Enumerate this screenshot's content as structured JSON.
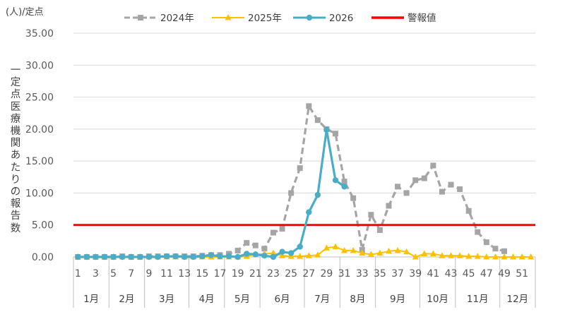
{
  "chart_data": {
    "type": "line",
    "unit_label": "(人)/定点",
    "ylabel": "一定点医療機関あたりの報告数",
    "ylim": [
      0,
      35
    ],
    "y_ticks": [
      "0.00",
      "5.00",
      "10.00",
      "15.00",
      "20.00",
      "25.00",
      "30.00",
      "35.00"
    ],
    "x_tick_labels": [
      "1",
      "3",
      "5",
      "7",
      "9",
      "11",
      "13",
      "15",
      "17",
      "19",
      "21",
      "23",
      "25",
      "27",
      "29",
      "31",
      "33",
      "35",
      "37",
      "39",
      "41",
      "43",
      "45",
      "47",
      "49",
      "51"
    ],
    "months": [
      "1月",
      "2月",
      "3月",
      "4月",
      "5月",
      "6月",
      "7月",
      "8月",
      "9月",
      "10月",
      "11月",
      "12月"
    ],
    "month_bounds": [
      1,
      5,
      9,
      14,
      18,
      22,
      27,
      31,
      35,
      40,
      44,
      49,
      53
    ],
    "legend_position": "top",
    "grid": true,
    "series": [
      {
        "name": "2024年",
        "color": "#A5A5A5",
        "style": "dashed",
        "marker": "square",
        "x": [
          1,
          2,
          3,
          4,
          5,
          6,
          7,
          8,
          9,
          10,
          11,
          12,
          13,
          14,
          15,
          16,
          17,
          18,
          19,
          20,
          21,
          22,
          23,
          24,
          25,
          26,
          27,
          28,
          29,
          30,
          31,
          32,
          33,
          34,
          35,
          36,
          37,
          38,
          39,
          40,
          41,
          42,
          43,
          44,
          45,
          46,
          47,
          48,
          49
        ],
        "values": [
          0.0,
          0.0,
          0.0,
          0.0,
          0.0,
          0.1,
          0.0,
          0.0,
          0.1,
          0.1,
          0.1,
          0.1,
          0.1,
          0.1,
          0.2,
          0.3,
          0.3,
          0.5,
          1.0,
          2.2,
          1.8,
          1.3,
          3.8,
          4.4,
          10.0,
          13.9,
          23.6,
          21.4,
          20.0,
          19.3,
          11.8,
          9.2,
          1.1,
          6.6,
          4.2,
          8.0,
          11.0,
          10.0,
          12.0,
          12.3,
          14.3,
          10.2,
          11.3,
          10.6,
          7.2,
          3.9,
          2.3,
          1.3,
          0.9
        ]
      },
      {
        "name": "2025年",
        "color": "#FFC000",
        "style": "solid",
        "marker": "triangle",
        "x": [
          1,
          2,
          3,
          4,
          5,
          6,
          7,
          8,
          9,
          10,
          11,
          12,
          13,
          14,
          15,
          16,
          17,
          18,
          19,
          20,
          21,
          22,
          23,
          24,
          25,
          26,
          27,
          28,
          29,
          30,
          31,
          32,
          33,
          34,
          35,
          36,
          37,
          38,
          39,
          40,
          41,
          42,
          43,
          44,
          45,
          46,
          47,
          48,
          49,
          50,
          51,
          52
        ],
        "values": [
          0.0,
          0.0,
          0.0,
          0.0,
          0.0,
          0.0,
          0.0,
          0.0,
          0.0,
          0.0,
          0.0,
          0.0,
          0.0,
          0.0,
          0.0,
          0.0,
          0.0,
          0.0,
          0.0,
          0.1,
          0.4,
          0.5,
          0.6,
          0.2,
          0.1,
          0.1,
          0.2,
          0.3,
          1.4,
          1.6,
          1.0,
          1.0,
          0.6,
          0.4,
          0.6,
          0.9,
          1.0,
          0.8,
          0.0,
          0.5,
          0.5,
          0.2,
          0.2,
          0.2,
          0.1,
          0.1,
          0.0,
          0.0,
          0.0,
          0.0,
          0.0,
          0.0
        ]
      },
      {
        "name": "2026",
        "color": "#4BACC6",
        "style": "solid",
        "marker": "circle",
        "x": [
          1,
          2,
          3,
          4,
          5,
          6,
          7,
          8,
          9,
          10,
          11,
          12,
          13,
          14,
          15,
          16,
          17,
          18,
          19,
          20,
          21,
          22,
          23,
          24,
          25,
          26,
          27,
          28,
          29,
          30,
          31
        ],
        "values": [
          0.0,
          0.0,
          0.0,
          0.0,
          0.0,
          0.0,
          0.0,
          0.0,
          0.0,
          0.0,
          0.1,
          0.1,
          0.0,
          0.0,
          0.1,
          0.3,
          0.1,
          0.1,
          0.0,
          0.5,
          0.4,
          0.2,
          0.0,
          0.8,
          0.6,
          1.6,
          7.0,
          9.7,
          19.9,
          12.0,
          11.0
        ]
      },
      {
        "name": "警報値",
        "color": "#FF0000",
        "style": "solid",
        "marker": "none",
        "x": [
          1,
          53
        ],
        "values": [
          5.0,
          5.0
        ]
      }
    ]
  }
}
